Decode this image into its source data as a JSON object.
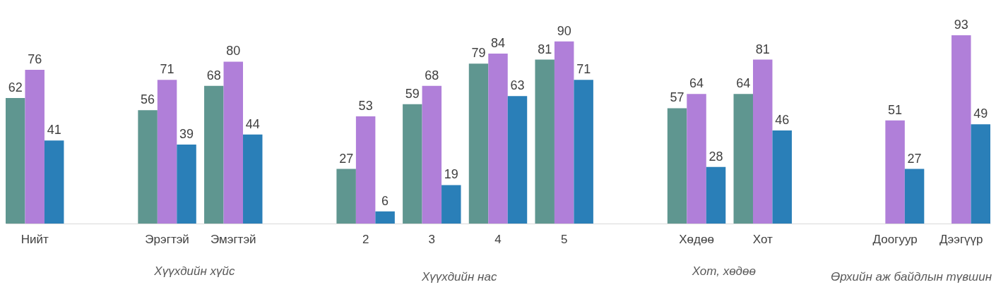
{
  "chart_data": {
    "type": "bar",
    "categories": [
      "Нийт",
      null,
      "Эрэгтэй",
      "Эмэгтэй",
      null,
      "2",
      "3",
      "4",
      "5",
      null,
      "Хөдөө",
      "Хот",
      null,
      "Доогуур",
      "Дээгүүр"
    ],
    "series": [
      {
        "color": "#5f9690",
        "values": [
          62,
          null,
          56,
          68,
          null,
          27,
          59,
          79,
          81,
          null,
          57,
          64,
          null,
          null,
          null
        ]
      },
      {
        "color": "#b07fd9",
        "values": [
          76,
          null,
          71,
          80,
          null,
          53,
          68,
          84,
          90,
          null,
          64,
          81,
          null,
          51,
          93
        ]
      },
      {
        "color": "#2a7fb8",
        "values": [
          41,
          null,
          39,
          44,
          null,
          6,
          19,
          63,
          71,
          null,
          28,
          46,
          null,
          27,
          49
        ]
      }
    ],
    "data_labels": true,
    "grid": false,
    "legend": false,
    "annotations": [
      "Хүүхдийн хүйс",
      "Хүүхдийн нас",
      "Хот, хөдөө",
      "Өрхийн аж байдлын түвшин"
    ]
  }
}
